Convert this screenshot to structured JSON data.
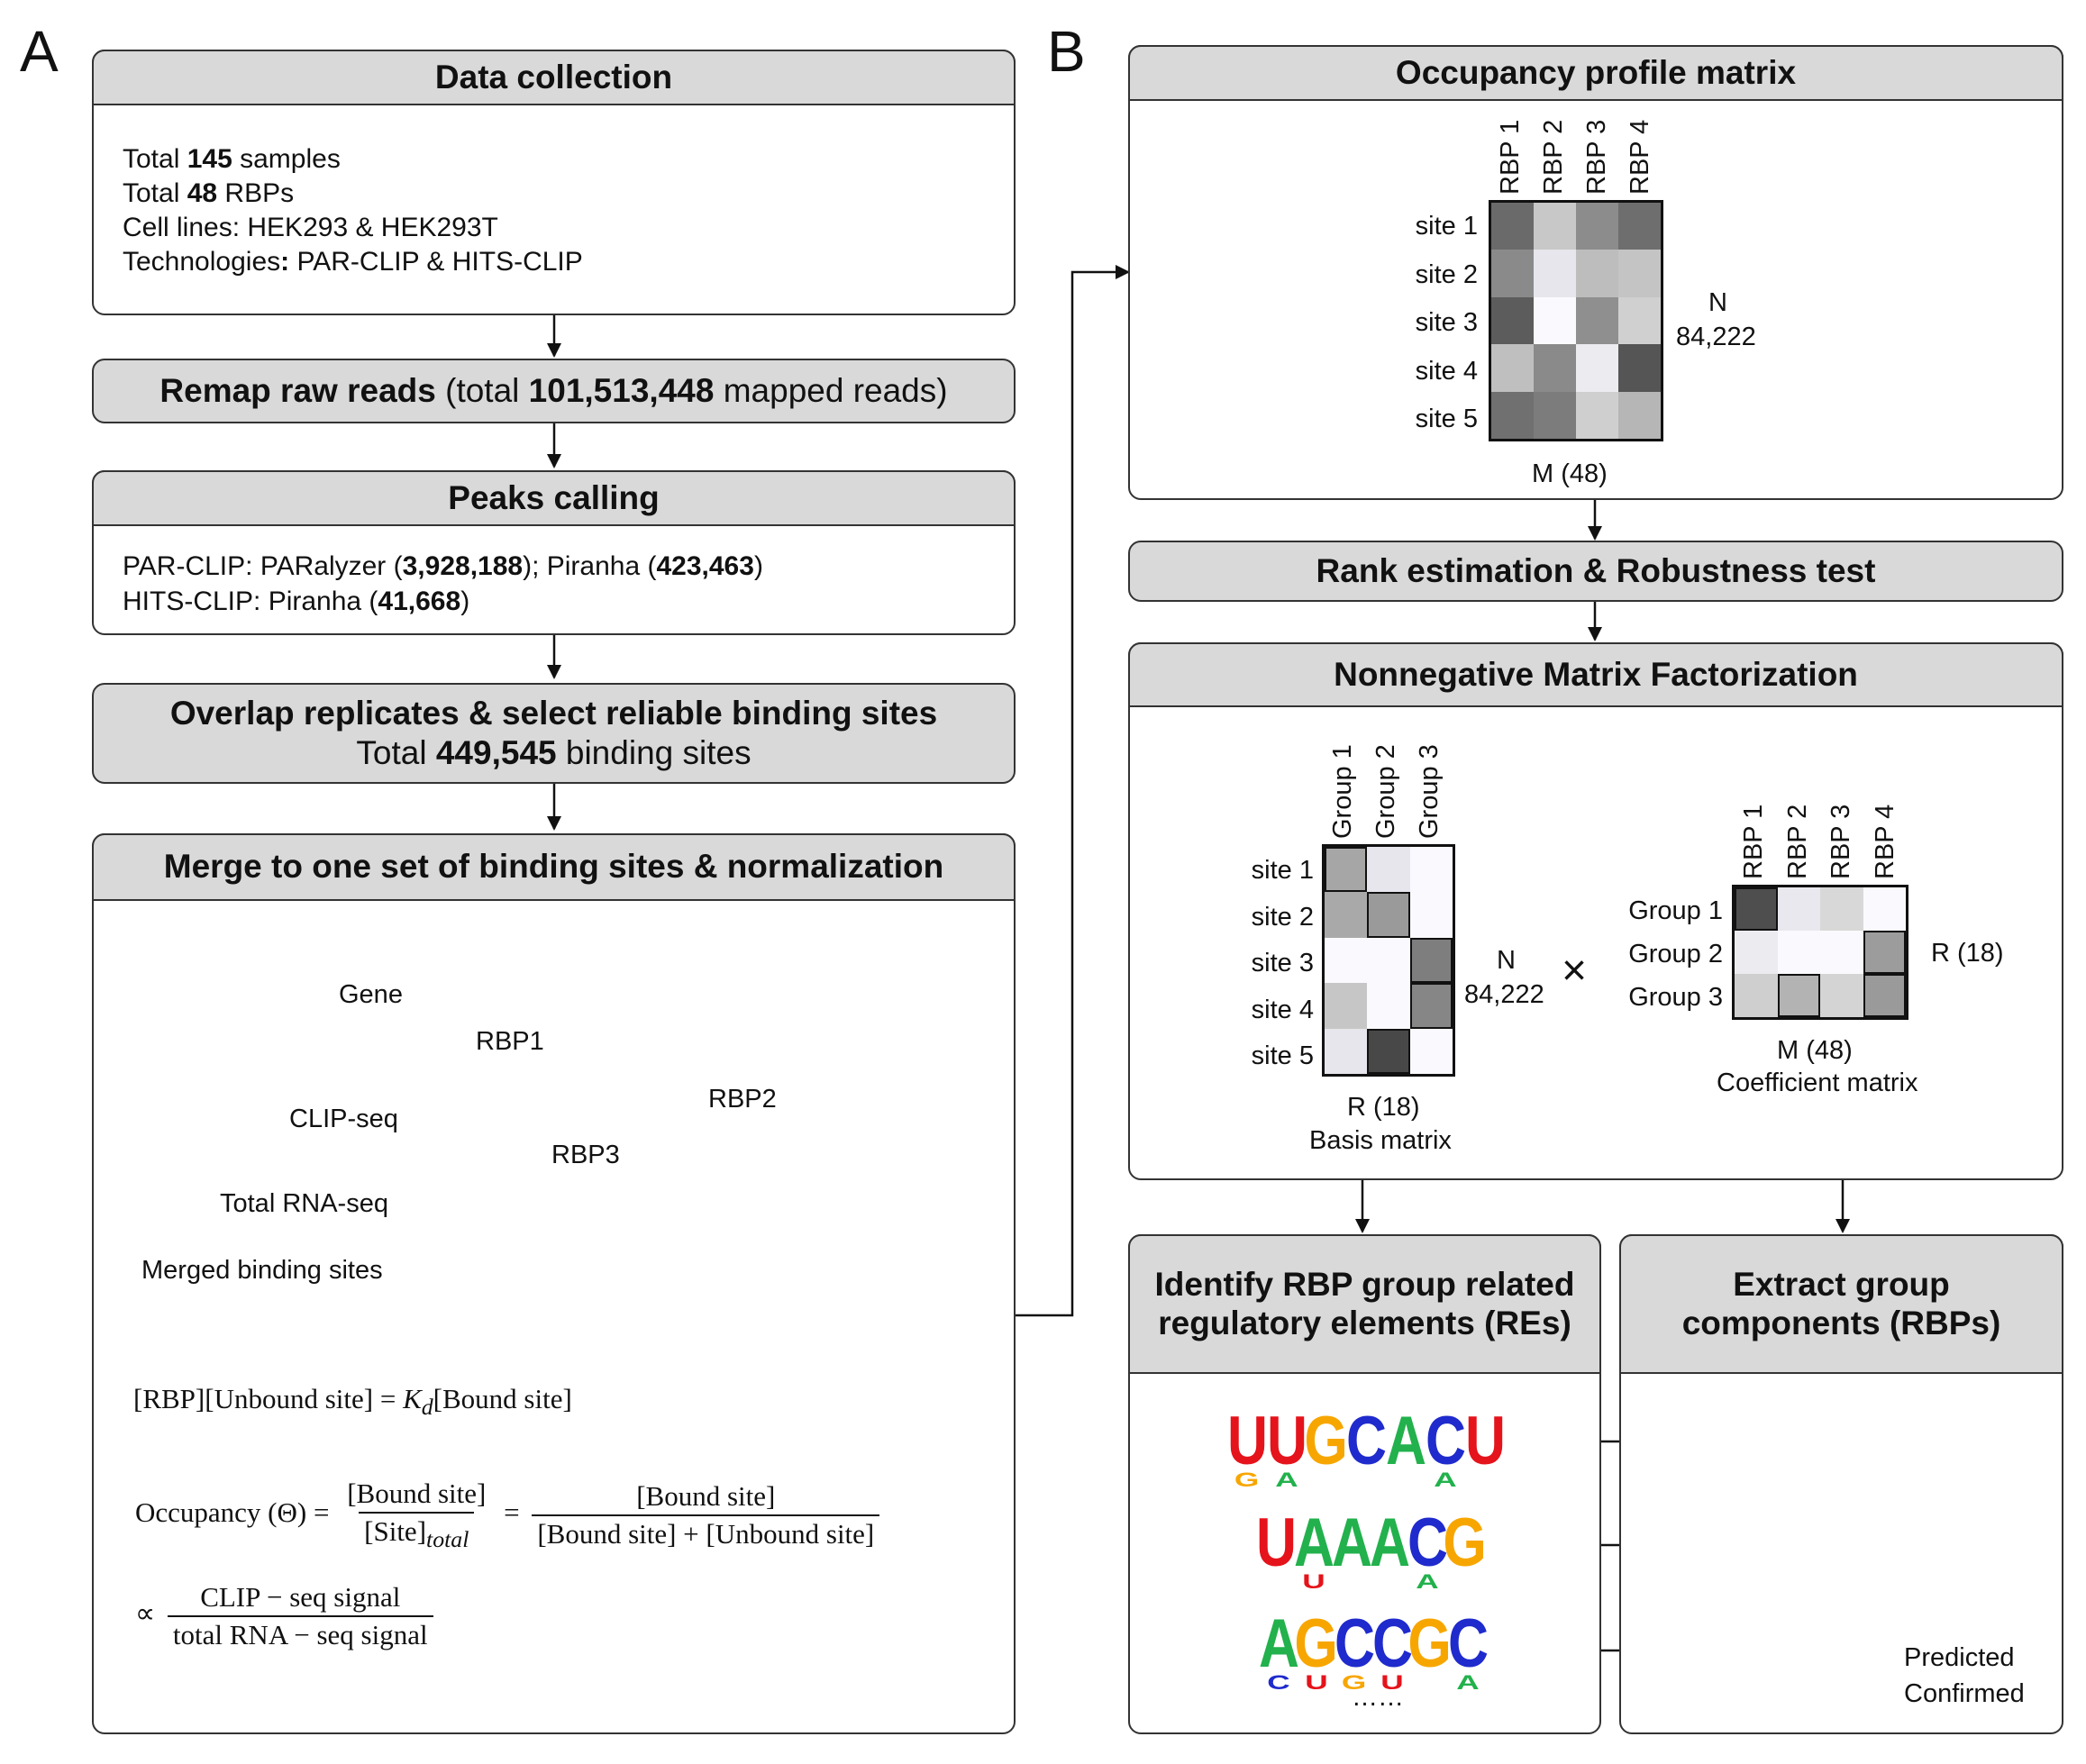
{
  "panels": {
    "a": "A",
    "b": "B"
  },
  "a": {
    "data_collection": {
      "title": "Data collection",
      "l1_pre": "Total ",
      "l1_bold": "145",
      "l1_post": " samples",
      "l2_pre": "Total ",
      "l2_bold": "48",
      "l2_post": " RBPs",
      "l3": "Cell lines: HEK293 & HEK293T",
      "l4_pre": "Technologies",
      "l4_bold": ":",
      "l4_post": " PAR-CLIP & HITS-CLIP"
    },
    "remap": {
      "bold1": "Remap raw reads",
      "mid": " (total ",
      "bold2": "101,513,448",
      "post": " mapped reads)"
    },
    "peaks": {
      "title": "Peaks calling",
      "l1_a": "PAR-CLIP: PARalyzer (",
      "l1_b": "3,928,188",
      "l1_c": "); Piranha (",
      "l1_d": "423,463",
      "l1_e": ")",
      "l2_a": "HITS-CLIP: Piranha (",
      "l2_b": "41,668",
      "l2_c": ")"
    },
    "overlap": {
      "title": "Overlap replicates & select reliable binding sites",
      "pre": "Total ",
      "bold": "449,545",
      "post": " binding sites"
    },
    "merge": {
      "title": "Merge to one set of binding sites & normalization",
      "gene": "Gene",
      "clip": "CLIP-seq",
      "rna": "Total RNA-seq",
      "merged": "Merged binding sites",
      "rbp1": "RBP1",
      "rbp2": "RBP2",
      "rbp3": "RBP3",
      "eq1_left": "[RBP][Unbound site] = ",
      "eq1_k": "K",
      "eq1_d": "d",
      "eq1_right": "[Bound site]",
      "eq2_lhs": "Occupancy (Θ) = ",
      "eq2_n1": "[Bound site]",
      "eq2_d1": "[Site]",
      "eq2_d1sub": "total",
      "eq2_eq": "=",
      "eq2_n2": "[Bound site]",
      "eq2_d2": "[Bound site] + [Unbound site]",
      "eq3_prop": "∝",
      "eq3_n": "CLIP − seq signal",
      "eq3_d": "total RNA − seq signal"
    }
  },
  "b": {
    "occupancy": {
      "title": "Occupancy profile matrix",
      "cols": [
        "RBP 1",
        "RBP 2",
        "RBP 3",
        "RBP 4"
      ],
      "rows": [
        "site 1",
        "site 2",
        "site 3",
        "site 4",
        "site 5"
      ],
      "n": "N",
      "n_val": "84,222",
      "m": "M (48)",
      "cells": [
        [
          "#6a6a6a",
          "#c8c8c8",
          "#8c8c8c",
          "#6e6e6e"
        ],
        [
          "#8a8a8a",
          "#e6e6ec",
          "#bdbdbd",
          "#c4c4c4"
        ],
        [
          "#5c5c5c",
          "#fafafe",
          "#8f8f8f",
          "#d0d0d0"
        ],
        [
          "#bfbfbf",
          "#8a8a8a",
          "#ececf0",
          "#555555"
        ],
        [
          "#707070",
          "#7c7c7c",
          "#cfcfcf",
          "#b6b6b6"
        ]
      ]
    },
    "rank": {
      "title": "Rank estimation & Robustness test"
    },
    "nmf": {
      "title": "Nonnegative Matrix Factorization",
      "basis_cols": [
        "Group 1",
        "Group 2",
        "Group 3"
      ],
      "basis_rows": [
        "site 1",
        "site 2",
        "site 3",
        "site 4",
        "site 5"
      ],
      "basis_cells": [
        [
          "#a6a6a6",
          "#e6e6ec",
          "#fafafe"
        ],
        [
          "#a9a9a9",
          "#9a9a9a",
          "#fafafe"
        ],
        [
          "#fafafe",
          "#fafafe",
          "#7e7e7e"
        ],
        [
          "#c6c6c6",
          "#fafafe",
          "#868686"
        ],
        [
          "#e6e6ec",
          "#484848",
          "#fafafe"
        ]
      ],
      "basis_outlined": [
        [
          0,
          0
        ],
        [
          1,
          1
        ],
        [
          2,
          2
        ],
        [
          3,
          2
        ],
        [
          4,
          1
        ]
      ],
      "n": "N",
      "n_val": "84,222",
      "r": "R (18)",
      "basis_label": "Basis matrix",
      "times": "×",
      "coef_cols": [
        "RBP 1",
        "RBP 2",
        "RBP 3",
        "RBP 4"
      ],
      "coef_rows": [
        "Group  1",
        "Group  2",
        "Group  3"
      ],
      "coef_cells": [
        [
          "#4e4e4e",
          "#e8e8ee",
          "#d8d8d8",
          "#fafafe"
        ],
        [
          "#ececf0",
          "#fafafe",
          "#fafafe",
          "#9c9c9c"
        ],
        [
          "#cfcfcf",
          "#b3b3b3",
          "#d4d4d4",
          "#9a9a9a"
        ]
      ],
      "coef_outlined": [
        [
          0,
          0
        ],
        [
          1,
          3
        ],
        [
          2,
          1
        ],
        [
          2,
          3
        ]
      ],
      "m": "M (48)",
      "coef_label": "Coefficient matrix",
      "r2": "R (18)"
    },
    "identify": {
      "title": "Identify RBP group related regulatory elements (REs)",
      "dots": "……"
    },
    "extract": {
      "title": "Extract group components (RBPs)"
    },
    "motifs": [
      {
        "top": [
          "U",
          "U",
          "G",
          "C",
          "A",
          "C",
          "U"
        ],
        "bottom": [
          "G",
          "A",
          "",
          "",
          "",
          "A",
          ""
        ]
      },
      {
        "top": [
          "U",
          "A",
          "A",
          "A",
          "C",
          "G"
        ],
        "bottom": [
          "",
          "U",
          "",
          "",
          "A",
          ""
        ]
      },
      {
        "top": [
          "A",
          "G",
          "C",
          "C",
          "G",
          "C"
        ],
        "bottom": [
          "C",
          "U",
          "G",
          "U",
          "",
          "A"
        ]
      }
    ],
    "legend": {
      "predicted": "Predicted",
      "confirmed": "Confirmed"
    },
    "colors": {
      "A": "#22b14c",
      "U": "#e5131b",
      "G": "#f7a600",
      "C": "#1f2bcc",
      "green": "#8dc63f",
      "pink": "#f2a7cf",
      "blue": "#6ec8f0",
      "yellow": "#fae39b"
    }
  }
}
